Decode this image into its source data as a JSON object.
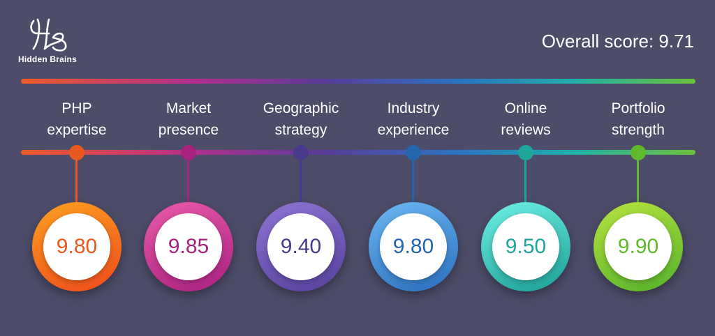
{
  "brand": {
    "name": "Hidden Brains",
    "logo_icon": "hb-monogram-icon"
  },
  "header": {
    "overall_label": "Overall score: 9.71"
  },
  "colors": {
    "background": "#4e4d69",
    "text": "#ffffff"
  },
  "categories": [
    {
      "line1": "PHP",
      "line2": "expertise",
      "score": "9.80",
      "color": "#e8591f",
      "ring_from": "#fca020",
      "ring_to": "#f04a1c"
    },
    {
      "line1": "Market",
      "line2": "presence",
      "score": "9.85",
      "color": "#a5237c",
      "ring_from": "#ea5aa8",
      "ring_to": "#a82180"
    },
    {
      "line1": "Geographic",
      "line2": "strategy",
      "score": "9.40",
      "color": "#4a3a8c",
      "ring_from": "#8f74d4",
      "ring_to": "#55409c"
    },
    {
      "line1": "Industry",
      "line2": "experience",
      "score": "9.80",
      "color": "#2366ad",
      "ring_from": "#6cb7f2",
      "ring_to": "#2a6fbf"
    },
    {
      "line1": "Online",
      "line2": "reviews",
      "score": "9.50",
      "color": "#1fa69b",
      "ring_from": "#6ef1e4",
      "ring_to": "#1c9e96"
    },
    {
      "line1": "Portfolio",
      "line2": "strength",
      "score": "9.90",
      "color": "#61b92d",
      "ring_from": "#b6e33e",
      "ring_to": "#55b22c"
    }
  ]
}
